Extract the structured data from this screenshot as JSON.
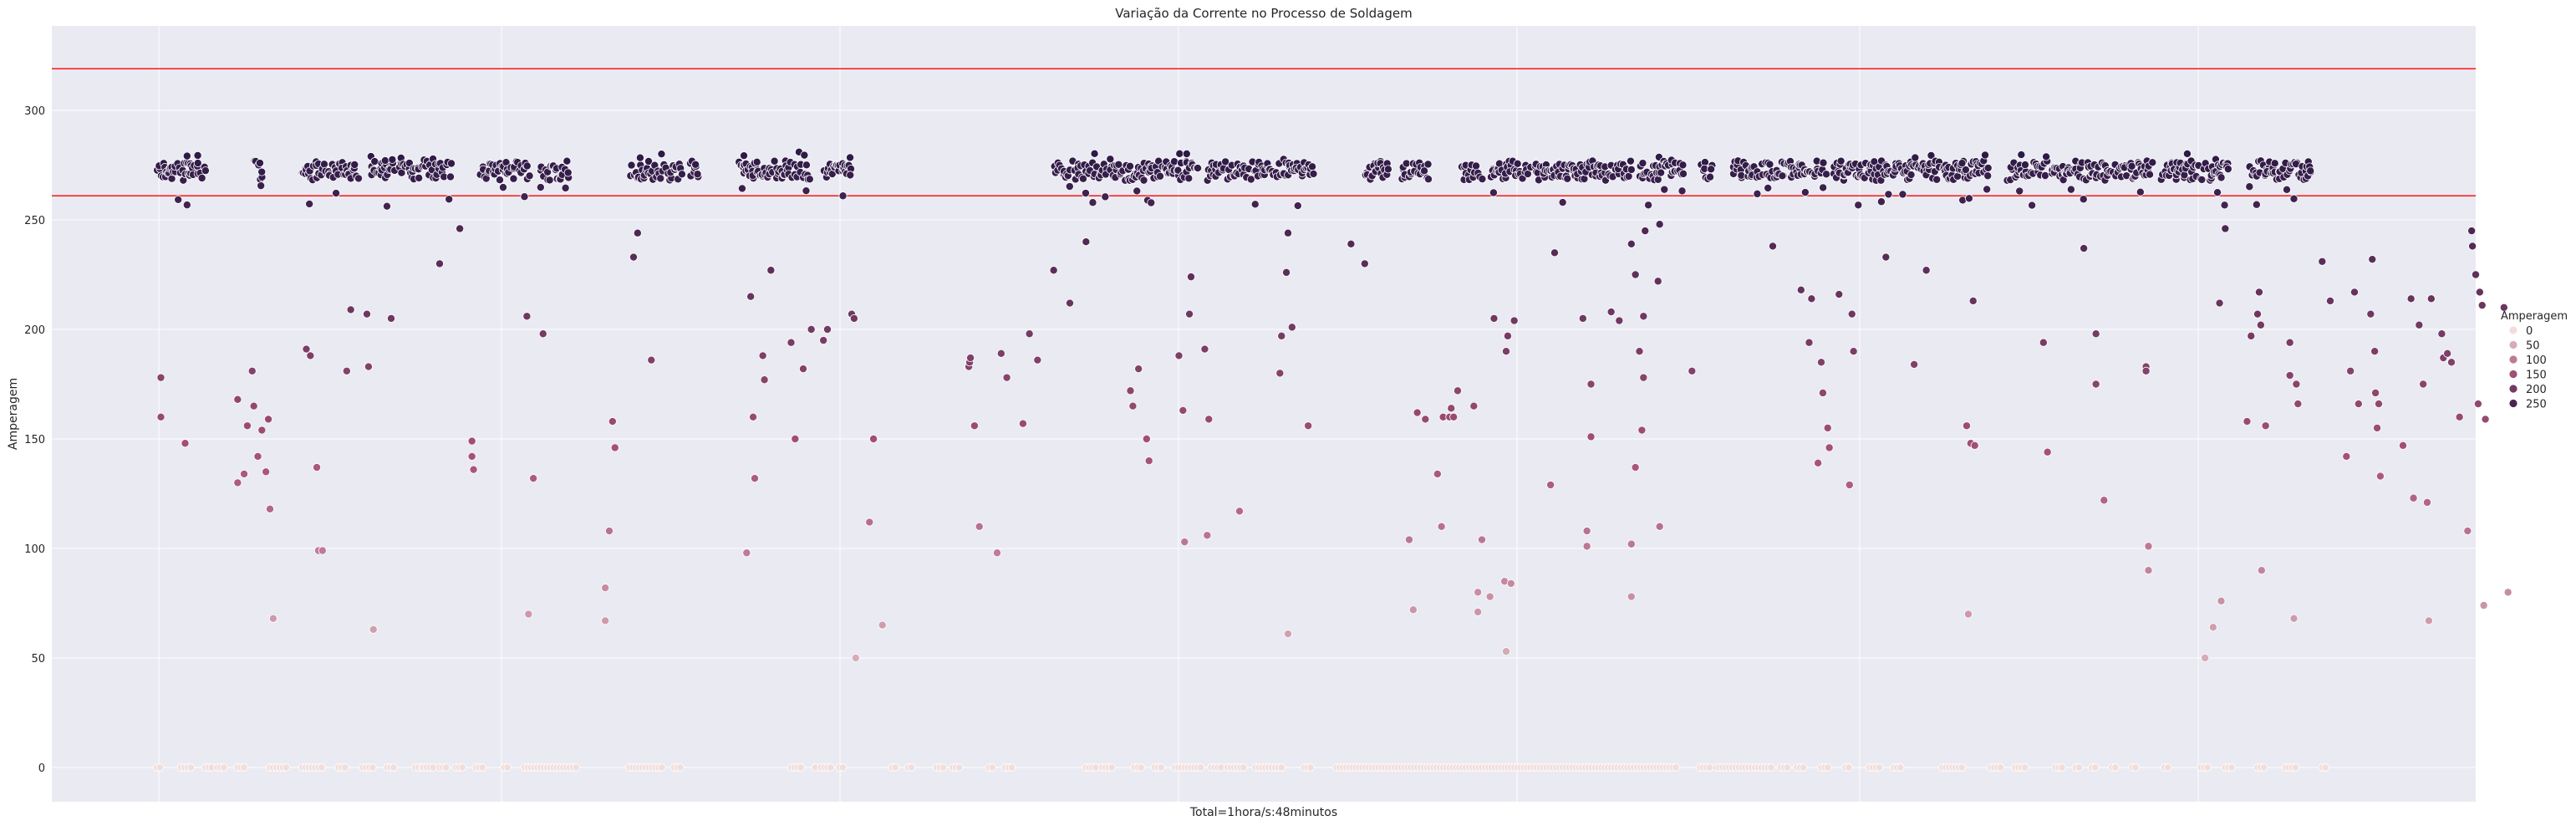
{
  "chart_data": {
    "type": "scatter",
    "title": "Variação da Corrente no Processo de Soldagem",
    "xlabel": "Total=1hora/s:48minutos",
    "ylabel": "Amperagem",
    "ylim": [
      -30,
      335
    ],
    "yticks": [
      0,
      50,
      100,
      150,
      200,
      250,
      300
    ],
    "xlim": [
      -130,
      2870
    ],
    "grid": true,
    "hlines": [
      {
        "y": 319,
        "color": "#ff0000"
      },
      {
        "y": 261,
        "color": "#ff0000"
      }
    ],
    "legend": {
      "title": "Amperagem",
      "placement": "right",
      "entries": [
        "0",
        "50",
        "100",
        "150",
        "200",
        "250"
      ]
    },
    "colors": {
      "background": "#eaeaf2",
      "grid": "#ffffff",
      "low": "#f1dedb",
      "high": "#2e1a47",
      "reference_line": "#ff0000"
    },
    "high_segments": [
      [
        0,
        60
      ],
      [
        120,
        130
      ],
      [
        180,
        250
      ],
      [
        265,
        295
      ],
      [
        300,
        365
      ],
      [
        400,
        460
      ],
      [
        475,
        510
      ],
      [
        585,
        650
      ],
      [
        660,
        670
      ],
      [
        720,
        810
      ],
      [
        825,
        860
      ],
      [
        1110,
        1175
      ],
      [
        1180,
        1290
      ],
      [
        1300,
        1430
      ],
      [
        1495,
        1525
      ],
      [
        1540,
        1575
      ],
      [
        1615,
        1640
      ],
      [
        1650,
        1700
      ],
      [
        1705,
        1825
      ],
      [
        1835,
        1890
      ],
      [
        1910,
        1925
      ],
      [
        1950,
        2065
      ],
      [
        2075,
        2205
      ],
      [
        2210,
        2265
      ],
      [
        2290,
        2340
      ],
      [
        2345,
        2470
      ],
      [
        2480,
        2565
      ],
      [
        2590,
        2665
      ]
    ],
    "zero_segments": [
      [
        0,
        5
      ],
      [
        30,
        45
      ],
      [
        60,
        70
      ],
      [
        75,
        85
      ],
      [
        100,
        110
      ],
      [
        140,
        160
      ],
      [
        180,
        205
      ],
      [
        225,
        235
      ],
      [
        255,
        268
      ],
      [
        285,
        295
      ],
      [
        320,
        330
      ],
      [
        330,
        345
      ],
      [
        350,
        360
      ],
      [
        370,
        380
      ],
      [
        395,
        405
      ],
      [
        430,
        435
      ],
      [
        455,
        520
      ],
      [
        585,
        625
      ],
      [
        640,
        650
      ],
      [
        785,
        800
      ],
      [
        815,
        815
      ],
      [
        822,
        835
      ],
      [
        845,
        850
      ],
      [
        910,
        915
      ],
      [
        930,
        935
      ],
      [
        965,
        975
      ],
      [
        985,
        995
      ],
      [
        1030,
        1035
      ],
      [
        1050,
        1060
      ],
      [
        1150,
        1162
      ],
      [
        1170,
        1185
      ],
      [
        1210,
        1220
      ],
      [
        1235,
        1245
      ],
      [
        1260,
        1295
      ],
      [
        1305,
        1320
      ],
      [
        1325,
        1345
      ],
      [
        1360,
        1395
      ],
      [
        1420,
        1430
      ],
      [
        1460,
        1880
      ],
      [
        1910,
        1925
      ],
      [
        1930,
        2000
      ],
      [
        2010,
        2020
      ],
      [
        2030,
        2040
      ],
      [
        2060,
        2068
      ],
      [
        2090,
        2095
      ],
      [
        2120,
        2135
      ],
      [
        2150,
        2160
      ],
      [
        2210,
        2235
      ],
      [
        2270,
        2285
      ],
      [
        2300,
        2315
      ],
      [
        2350,
        2360
      ],
      [
        2375,
        2380
      ],
      [
        2395,
        2400
      ],
      [
        2420,
        2427
      ],
      [
        2445,
        2450
      ],
      [
        2485,
        2490
      ],
      [
        2530,
        2540
      ],
      [
        2560,
        2570
      ],
      [
        2600,
        2610
      ],
      [
        2635,
        2650
      ],
      [
        2680,
        2685
      ]
    ],
    "scatter_points": [
      [
        5,
        178
      ],
      [
        5,
        160
      ],
      [
        35,
        148
      ],
      [
        100,
        130
      ],
      [
        100,
        168
      ],
      [
        108,
        134
      ],
      [
        112,
        156
      ],
      [
        118,
        181
      ],
      [
        120,
        165
      ],
      [
        125,
        142
      ],
      [
        130,
        154
      ],
      [
        135,
        135
      ],
      [
        140,
        118
      ],
      [
        138,
        159
      ],
      [
        144,
        68
      ],
      [
        185,
        191
      ],
      [
        190,
        188
      ],
      [
        198,
        137
      ],
      [
        200,
        99
      ],
      [
        205,
        99
      ],
      [
        235,
        181
      ],
      [
        240,
        209
      ],
      [
        262,
        183
      ],
      [
        260,
        207
      ],
      [
        268,
        63
      ],
      [
        290,
        205
      ],
      [
        350,
        230
      ],
      [
        375,
        246
      ],
      [
        390,
        149
      ],
      [
        390,
        142
      ],
      [
        392,
        136
      ],
      [
        460,
        70
      ],
      [
        458,
        206
      ],
      [
        466,
        132
      ],
      [
        478,
        198
      ],
      [
        555,
        82
      ],
      [
        555,
        67
      ],
      [
        560,
        108
      ],
      [
        564,
        158
      ],
      [
        567,
        146
      ],
      [
        612,
        186
      ],
      [
        595,
        244
      ],
      [
        590,
        233
      ],
      [
        730,
        98
      ],
      [
        735,
        215
      ],
      [
        738,
        160
      ],
      [
        740,
        132
      ],
      [
        750,
        188
      ],
      [
        760,
        227
      ],
      [
        752,
        177
      ],
      [
        790,
        150
      ],
      [
        785,
        194
      ],
      [
        800,
        182
      ],
      [
        810,
        200
      ],
      [
        825,
        195
      ],
      [
        830,
        200
      ],
      [
        860,
        207
      ],
      [
        863,
        205
      ],
      [
        865,
        50
      ],
      [
        882,
        112
      ],
      [
        887,
        150
      ],
      [
        898,
        65
      ],
      [
        1005,
        183
      ],
      [
        1006,
        185
      ],
      [
        1007,
        187
      ],
      [
        1012,
        156
      ],
      [
        1018,
        110
      ],
      [
        1040,
        98
      ],
      [
        1045,
        189
      ],
      [
        1052,
        178
      ],
      [
        1072,
        157
      ],
      [
        1090,
        186
      ],
      [
        1080,
        198
      ],
      [
        1110,
        227
      ],
      [
        1130,
        212
      ],
      [
        1150,
        240
      ],
      [
        1205,
        172
      ],
      [
        1208,
        165
      ],
      [
        1215,
        182
      ],
      [
        1225,
        150
      ],
      [
        1228,
        140
      ],
      [
        1265,
        188
      ],
      [
        1270,
        163
      ],
      [
        1272,
        103
      ],
      [
        1278,
        207
      ],
      [
        1280,
        224
      ],
      [
        1297,
        191
      ],
      [
        1300,
        106
      ],
      [
        1302,
        159
      ],
      [
        1340,
        117
      ],
      [
        1390,
        180
      ],
      [
        1392,
        197
      ],
      [
        1398,
        226
      ],
      [
        1400,
        244
      ],
      [
        1405,
        201
      ],
      [
        1400,
        61
      ],
      [
        1425,
        156
      ],
      [
        1478,
        239
      ],
      [
        1495,
        230
      ],
      [
        1550,
        104
      ],
      [
        1555,
        72
      ],
      [
        1560,
        162
      ],
      [
        1570,
        159
      ],
      [
        1585,
        134
      ],
      [
        1590,
        110
      ],
      [
        1592,
        160
      ],
      [
        1600,
        160
      ],
      [
        1602,
        164
      ],
      [
        1605,
        160
      ],
      [
        1610,
        172
      ],
      [
        1630,
        165
      ],
      [
        1635,
        80
      ],
      [
        1640,
        104
      ],
      [
        1650,
        78
      ],
      [
        1635,
        71
      ],
      [
        1655,
        205
      ],
      [
        1668,
        85
      ],
      [
        1676,
        84
      ],
      [
        1672,
        197
      ],
      [
        1670,
        190
      ],
      [
        1680,
        204
      ],
      [
        1670,
        53
      ],
      [
        1725,
        129
      ],
      [
        1740,
        258
      ],
      [
        1730,
        235
      ],
      [
        1765,
        205
      ],
      [
        1770,
        108
      ],
      [
        1770,
        101
      ],
      [
        1775,
        175
      ],
      [
        1775,
        151
      ],
      [
        1800,
        208
      ],
      [
        1810,
        204
      ],
      [
        1825,
        102
      ],
      [
        1825,
        78
      ],
      [
        1830,
        137
      ],
      [
        1835,
        190
      ],
      [
        1838,
        154
      ],
      [
        1840,
        206
      ],
      [
        1840,
        178
      ],
      [
        1858,
        222
      ],
      [
        1860,
        110
      ],
      [
        1900,
        181
      ],
      [
        1825,
        239
      ],
      [
        1830,
        225
      ],
      [
        1842,
        245
      ],
      [
        1860,
        248
      ],
      [
        2000,
        238
      ],
      [
        2035,
        218
      ],
      [
        2045,
        194
      ],
      [
        2048,
        214
      ],
      [
        2056,
        139
      ],
      [
        2060,
        185
      ],
      [
        2062,
        171
      ],
      [
        2068,
        155
      ],
      [
        2070,
        146
      ],
      [
        2082,
        216
      ],
      [
        2095,
        129
      ],
      [
        2098,
        207
      ],
      [
        2100,
        190
      ],
      [
        2140,
        233
      ],
      [
        2175,
        184
      ],
      [
        2190,
        227
      ],
      [
        2235,
        259
      ],
      [
        2240,
        156
      ],
      [
        2245,
        148
      ],
      [
        2248,
        213
      ],
      [
        2242,
        70
      ],
      [
        2250,
        147
      ],
      [
        2335,
        194
      ],
      [
        2340,
        144
      ],
      [
        2385,
        237
      ],
      [
        2400,
        198
      ],
      [
        2400,
        175
      ],
      [
        2410,
        122
      ],
      [
        2465,
        101
      ],
      [
        2465,
        90
      ],
      [
        2462,
        183
      ],
      [
        2462,
        181
      ],
      [
        2535,
        50
      ],
      [
        2545,
        64
      ],
      [
        2555,
        76
      ],
      [
        2553,
        212
      ],
      [
        2560,
        246
      ],
      [
        2587,
        158
      ],
      [
        2592,
        197
      ],
      [
        2600,
        207
      ],
      [
        2602,
        217
      ],
      [
        2604,
        202
      ],
      [
        2605,
        90
      ],
      [
        2610,
        156
      ],
      [
        2640,
        179
      ],
      [
        2640,
        194
      ],
      [
        2648,
        175
      ],
      [
        2650,
        166
      ],
      [
        2645,
        68
      ],
      [
        2680,
        231
      ],
      [
        2690,
        213
      ],
      [
        2715,
        181
      ],
      [
        2725,
        166
      ],
      [
        2710,
        142
      ],
      [
        2720,
        217
      ],
      [
        2740,
        207
      ],
      [
        2742,
        232
      ],
      [
        2745,
        190
      ],
      [
        2746,
        171
      ],
      [
        2748,
        155
      ],
      [
        2752,
        133
      ],
      [
        2750,
        166
      ],
      [
        2780,
        147
      ],
      [
        2790,
        214
      ],
      [
        2793,
        123
      ],
      [
        2800,
        202
      ],
      [
        2805,
        175
      ],
      [
        2810,
        121
      ],
      [
        2812,
        67
      ],
      [
        2815,
        214
      ],
      [
        2830,
        187
      ],
      [
        2828,
        198
      ],
      [
        2835,
        189
      ],
      [
        2840,
        185
      ],
      [
        2850,
        160
      ],
      [
        2860,
        108
      ],
      [
        2865,
        245
      ],
      [
        2866,
        238
      ],
      [
        2870,
        225
      ],
      [
        2873,
        166
      ],
      [
        2875,
        217
      ],
      [
        2878,
        211
      ],
      [
        2880,
        74
      ],
      [
        2882,
        159
      ],
      [
        2905,
        210
      ],
      [
        2910,
        80
      ]
    ]
  }
}
